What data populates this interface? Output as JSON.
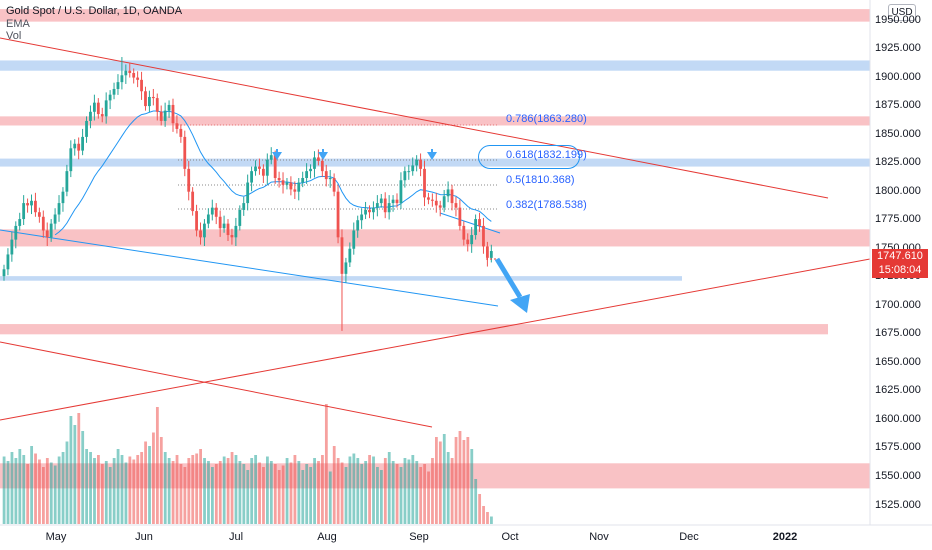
{
  "header": {
    "symbol_title": "Gold Spot / U.S. Dollar, 1D, OANDA",
    "indicator_1": "EMA",
    "indicator_2": "Vol"
  },
  "price_axis": {
    "currency": "USD",
    "ticks": [
      "1950.000",
      "1925.000",
      "1900.000",
      "1875.000",
      "1850.000",
      "1825.000",
      "1800.000",
      "1775.000",
      "1750.000",
      "1725.000",
      "1700.000",
      "1675.000",
      "1650.000",
      "1625.000",
      "1600.000",
      "1575.000",
      "1550.000",
      "1525.000"
    ],
    "current_price": "1747.610",
    "countdown": "15:08:04"
  },
  "time_axis": {
    "labels": [
      "May",
      "Jun",
      "Jul",
      "Aug",
      "Sep",
      "Oct",
      "Nov",
      "Dec",
      "2022"
    ]
  },
  "fibonacci": {
    "levels": [
      "0.786(1863.280)",
      "0.618(1832.199)",
      "0.5(1810.368)",
      "0.382(1788.538)"
    ]
  },
  "colors": {
    "bull_candle": "#26a69a",
    "bear_candle": "#ef5350",
    "zone_red": "rgba(244,143,150,0.55)",
    "zone_blue": "rgba(144,185,236,0.55)",
    "trend_red": "#e53935",
    "trend_blue": "#2196f3",
    "ema": "#2196f3"
  },
  "chart_data": {
    "type": "candlestick",
    "symbol": "XAUUSD",
    "interval": "1D",
    "y_range": [
      1515,
      1965
    ],
    "price_zones": [
      {
        "color": "red",
        "from": 1949,
        "to": 1960
      },
      {
        "color": "blue",
        "from": 1906,
        "to": 1915
      },
      {
        "color": "red",
        "from": 1858,
        "to": 1866
      },
      {
        "color": "blue",
        "from": 1822,
        "to": 1829
      },
      {
        "color": "red",
        "from": 1752,
        "to": 1767
      },
      {
        "color": "blue",
        "from": 1722,
        "to": 1726
      },
      {
        "color": "red",
        "from": 1675,
        "to": 1684
      },
      {
        "color": "red",
        "from": 1540,
        "to": 1562
      }
    ],
    "closes": [
      1732,
      1745,
      1758,
      1770,
      1776,
      1790,
      1788,
      1792,
      1782,
      1778,
      1766,
      1760,
      1772,
      1780,
      1790,
      1800,
      1818,
      1838,
      1842,
      1836,
      1848,
      1862,
      1870,
      1878,
      1868,
      1866,
      1880,
      1885,
      1890,
      1896,
      1902,
      1906,
      1904,
      1900,
      1898,
      1888,
      1875,
      1883,
      1882,
      1870,
      1862,
      1871,
      1876,
      1860,
      1855,
      1848,
      1820,
      1800,
      1783,
      1766,
      1760,
      1772,
      1780,
      1786,
      1778,
      1768,
      1772,
      1762,
      1760,
      1770,
      1784,
      1790,
      1808,
      1818,
      1822,
      1820,
      1814,
      1828,
      1832,
      1812,
      1810,
      1806,
      1808,
      1802,
      1800,
      1808,
      1812,
      1818,
      1820,
      1830,
      1827,
      1818,
      1811,
      1812,
      1800,
      1760,
      1728,
      1738,
      1750,
      1766,
      1775,
      1780,
      1784,
      1782,
      1786,
      1790,
      1794,
      1782,
      1790,
      1793,
      1790,
      1810,
      1818,
      1818,
      1823,
      1828,
      1820,
      1795,
      1793,
      1792,
      1788,
      1786,
      1796,
      1802,
      1790,
      1786,
      1770,
      1758,
      1754,
      1762,
      1776,
      1770,
      1752,
      1742,
      1748
    ],
    "volume": [
      45,
      42,
      48,
      44,
      50,
      46,
      40,
      52,
      47,
      43,
      38,
      44,
      41,
      39,
      45,
      48,
      55,
      72,
      66,
      74,
      62,
      50,
      48,
      44,
      46,
      40,
      42,
      38,
      44,
      50,
      46,
      41,
      45,
      43,
      46,
      48,
      55,
      52,
      61,
      78,
      58,
      48,
      44,
      42,
      46,
      40,
      38,
      44,
      46,
      47,
      50,
      44,
      42,
      38,
      40,
      42,
      45,
      44,
      48,
      46,
      42,
      40,
      36,
      44,
      46,
      41,
      38,
      45,
      42,
      40,
      36,
      39,
      44,
      41,
      46,
      42,
      36,
      40,
      38,
      44,
      42,
      46,
      80,
      35,
      52,
      44,
      41,
      38,
      45,
      47,
      44,
      40,
      42,
      46,
      45,
      38,
      36,
      44,
      48,
      42,
      40,
      38,
      44,
      43,
      46,
      42,
      38,
      40,
      35,
      44,
      58,
      55,
      60,
      48,
      44,
      58,
      62,
      56,
      58,
      50,
      30,
      20,
      12,
      8,
      5
    ]
  }
}
